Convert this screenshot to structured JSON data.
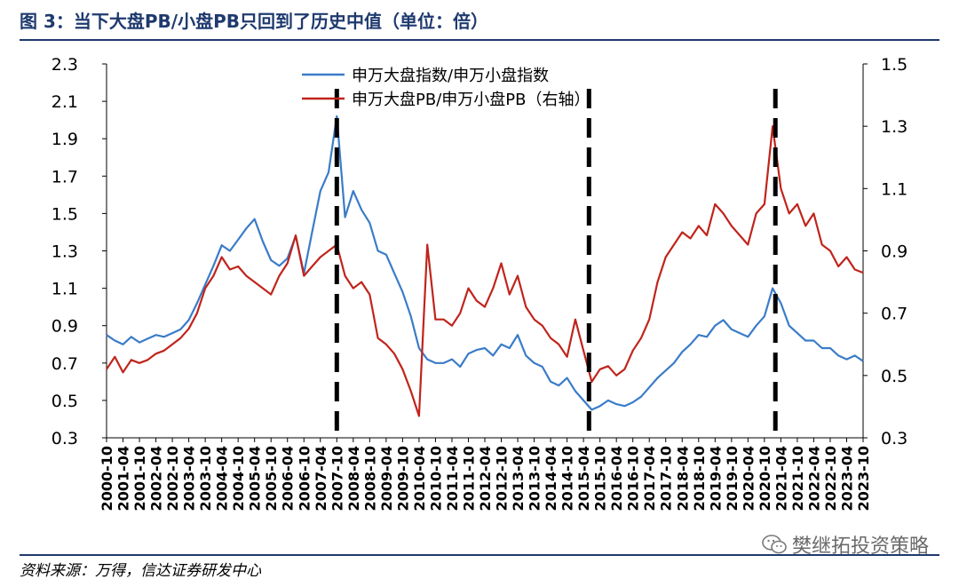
{
  "header": {
    "title": "图 3：当下大盘PB/小盘PB只回到了历史中值（单位：倍）"
  },
  "footer": {
    "source": "资料来源：万得，信达证券研发中心"
  },
  "watermark": {
    "text": "樊继拓投资策略",
    "icon": "wechat-icon",
    "color": "#6a6a6a"
  },
  "chart_data": {
    "type": "line",
    "title": "",
    "xlabel": "",
    "ylabel": "",
    "ylim": [
      0.3,
      2.3
    ],
    "y2lim": [
      0.3,
      1.5
    ],
    "yticks": [
      "0.3",
      "0.5",
      "0.7",
      "0.9",
      "1.1",
      "1.3",
      "1.5",
      "1.7",
      "1.9",
      "2.1",
      "2.3"
    ],
    "y2ticks": [
      "0.3",
      "0.5",
      "0.7",
      "0.9",
      "1.1",
      "1.3",
      "1.5"
    ],
    "xticks": [
      "2000-10",
      "2001-04",
      "2001-10",
      "2002-04",
      "2002-10",
      "2003-04",
      "2003-10",
      "2004-04",
      "2004-10",
      "2005-04",
      "2005-10",
      "2006-04",
      "2006-10",
      "2007-04",
      "2007-10",
      "2008-04",
      "2008-10",
      "2009-04",
      "2009-10",
      "2010-04",
      "2010-10",
      "2011-04",
      "2011-10",
      "2012-04",
      "2012-10",
      "2013-04",
      "2013-10",
      "2014-04",
      "2014-10",
      "2015-04",
      "2015-10",
      "2016-04",
      "2016-10",
      "2017-04",
      "2017-10",
      "2018-04",
      "2018-10",
      "2019-04",
      "2019-10",
      "2020-04",
      "2020-10",
      "2021-04",
      "2021-10",
      "2022-04",
      "2022-10",
      "2023-04",
      "2023-10"
    ],
    "legend": "top-center",
    "grid": false,
    "vlines": [
      "2007-10",
      "2015-06",
      "2021-02"
    ],
    "series": [
      {
        "name": "申万大盘指数/申万小盘指数",
        "axis": "left",
        "color": "#3a7cc8",
        "x": [
          "2000-10",
          "2001-01",
          "2001-04",
          "2001-07",
          "2001-10",
          "2002-01",
          "2002-04",
          "2002-07",
          "2002-10",
          "2003-01",
          "2003-04",
          "2003-07",
          "2003-10",
          "2004-01",
          "2004-04",
          "2004-07",
          "2004-10",
          "2005-01",
          "2005-04",
          "2005-07",
          "2005-10",
          "2006-01",
          "2006-04",
          "2006-07",
          "2006-10",
          "2007-01",
          "2007-04",
          "2007-07",
          "2007-10",
          "2008-01",
          "2008-04",
          "2008-07",
          "2008-10",
          "2009-01",
          "2009-04",
          "2009-07",
          "2009-10",
          "2010-01",
          "2010-04",
          "2010-07",
          "2010-10",
          "2011-01",
          "2011-04",
          "2011-07",
          "2011-10",
          "2012-01",
          "2012-04",
          "2012-07",
          "2012-10",
          "2013-01",
          "2013-04",
          "2013-07",
          "2013-10",
          "2014-01",
          "2014-04",
          "2014-07",
          "2014-10",
          "2015-01",
          "2015-04",
          "2015-07",
          "2015-10",
          "2016-01",
          "2016-04",
          "2016-07",
          "2016-10",
          "2017-01",
          "2017-04",
          "2017-07",
          "2017-10",
          "2018-01",
          "2018-04",
          "2018-07",
          "2018-10",
          "2019-01",
          "2019-04",
          "2019-07",
          "2019-10",
          "2020-01",
          "2020-04",
          "2020-07",
          "2020-10",
          "2021-01",
          "2021-04",
          "2021-07",
          "2021-10",
          "2022-01",
          "2022-04",
          "2022-07",
          "2022-10",
          "2023-01",
          "2023-04",
          "2023-07",
          "2023-10"
        ],
        "values": [
          0.85,
          0.82,
          0.8,
          0.84,
          0.81,
          0.83,
          0.85,
          0.84,
          0.86,
          0.88,
          0.93,
          1.02,
          1.12,
          1.22,
          1.33,
          1.3,
          1.36,
          1.42,
          1.47,
          1.35,
          1.25,
          1.22,
          1.26,
          1.38,
          1.18,
          1.4,
          1.62,
          1.72,
          2.02,
          1.48,
          1.62,
          1.52,
          1.45,
          1.3,
          1.28,
          1.18,
          1.08,
          0.95,
          0.78,
          0.72,
          0.7,
          0.7,
          0.72,
          0.68,
          0.75,
          0.77,
          0.78,
          0.74,
          0.8,
          0.78,
          0.85,
          0.74,
          0.7,
          0.68,
          0.6,
          0.58,
          0.62,
          0.55,
          0.5,
          0.45,
          0.47,
          0.5,
          0.48,
          0.47,
          0.49,
          0.52,
          0.57,
          0.62,
          0.66,
          0.7,
          0.76,
          0.8,
          0.85,
          0.84,
          0.9,
          0.93,
          0.88,
          0.86,
          0.84,
          0.9,
          0.95,
          1.1,
          1.02,
          0.9,
          0.86,
          0.82,
          0.82,
          0.78,
          0.78,
          0.74,
          0.72,
          0.74,
          0.71
        ]
      },
      {
        "name": "申万大盘PB/申万小盘PB（右轴）",
        "axis": "right",
        "color": "#c0241c",
        "x": [
          "2000-10",
          "2001-01",
          "2001-04",
          "2001-07",
          "2001-10",
          "2002-01",
          "2002-04",
          "2002-07",
          "2002-10",
          "2003-01",
          "2003-04",
          "2003-07",
          "2003-10",
          "2004-01",
          "2004-04",
          "2004-07",
          "2004-10",
          "2005-01",
          "2005-04",
          "2005-07",
          "2005-10",
          "2006-01",
          "2006-04",
          "2006-07",
          "2006-10",
          "2007-01",
          "2007-04",
          "2007-07",
          "2007-10",
          "2008-01",
          "2008-04",
          "2008-07",
          "2008-10",
          "2009-01",
          "2009-04",
          "2009-07",
          "2009-10",
          "2010-01",
          "2010-04",
          "2010-07",
          "2010-10",
          "2011-01",
          "2011-04",
          "2011-07",
          "2011-10",
          "2012-01",
          "2012-04",
          "2012-07",
          "2012-10",
          "2013-01",
          "2013-04",
          "2013-07",
          "2013-10",
          "2014-01",
          "2014-04",
          "2014-07",
          "2014-10",
          "2015-01",
          "2015-04",
          "2015-07",
          "2015-10",
          "2016-01",
          "2016-04",
          "2016-07",
          "2016-10",
          "2017-01",
          "2017-04",
          "2017-07",
          "2017-10",
          "2018-01",
          "2018-04",
          "2018-07",
          "2018-10",
          "2019-01",
          "2019-04",
          "2019-07",
          "2019-10",
          "2020-01",
          "2020-04",
          "2020-07",
          "2020-10",
          "2021-01",
          "2021-04",
          "2021-07",
          "2021-10",
          "2022-01",
          "2022-04",
          "2022-07",
          "2022-10",
          "2023-01",
          "2023-04",
          "2023-07",
          "2023-10"
        ],
        "values": [
          0.52,
          0.56,
          0.51,
          0.55,
          0.54,
          0.55,
          0.57,
          0.58,
          0.6,
          0.62,
          0.65,
          0.7,
          0.78,
          0.82,
          0.88,
          0.84,
          0.85,
          0.82,
          0.8,
          0.78,
          0.76,
          0.82,
          0.86,
          0.95,
          0.82,
          0.85,
          0.88,
          0.9,
          0.92,
          0.82,
          0.78,
          0.8,
          0.76,
          0.62,
          0.6,
          0.57,
          0.52,
          0.45,
          0.37,
          0.92,
          0.68,
          0.68,
          0.66,
          0.7,
          0.78,
          0.74,
          0.72,
          0.78,
          0.86,
          0.76,
          0.82,
          0.72,
          0.68,
          0.66,
          0.62,
          0.6,
          0.56,
          0.68,
          0.58,
          0.48,
          0.52,
          0.53,
          0.5,
          0.52,
          0.58,
          0.62,
          0.68,
          0.8,
          0.88,
          0.92,
          0.96,
          0.94,
          0.98,
          0.95,
          1.05,
          1.02,
          0.98,
          0.95,
          0.92,
          1.02,
          1.05,
          1.3,
          1.1,
          1.02,
          1.05,
          0.98,
          1.02,
          0.92,
          0.9,
          0.85,
          0.88,
          0.84,
          0.83
        ]
      }
    ]
  }
}
